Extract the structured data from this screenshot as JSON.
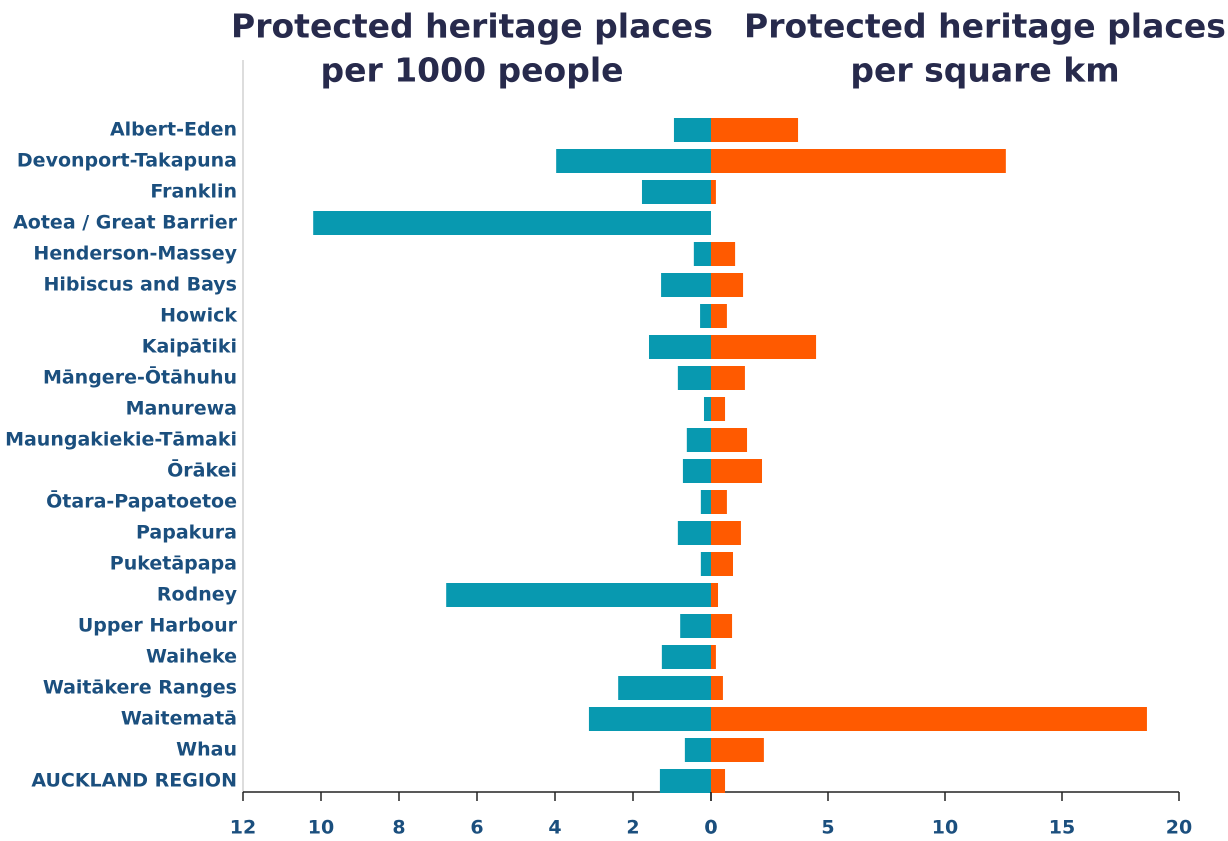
{
  "chart_data": [
    {
      "type": "barh",
      "title": [
        "Protected heritage places",
        "per 1000 people"
      ],
      "categories": [
        "Albert-Eden",
        "Devonport-Takapuna",
        "Franklin",
        "Aotea / Great Barrier",
        "Henderson-Massey",
        "Hibiscus and Bays",
        "Howick",
        "Kaipātiki",
        "Māngere-Ōtāhuhu",
        "Manurewa",
        "Maungakiekie-Tāmaki",
        "Ōrākei",
        "Ōtara-Papatoetoe",
        "Papakura",
        "Puketāpapa",
        "Rodney",
        "Upper Harbour",
        "Waiheke",
        "Waitākere Ranges",
        "Waitematā",
        "Whau",
        "AUCKLAND REGION"
      ],
      "values": [
        0.95,
        3.97,
        1.77,
        10.2,
        0.44,
        1.28,
        0.28,
        1.59,
        0.85,
        0.18,
        0.62,
        0.72,
        0.26,
        0.85,
        0.26,
        6.79,
        0.79,
        1.26,
        2.38,
        3.13,
        0.67,
        1.31
      ],
      "color": "#0899b0",
      "xlim": [
        12,
        0
      ],
      "xticks": [
        12,
        10,
        8,
        6,
        4,
        2,
        0
      ]
    },
    {
      "type": "barh",
      "title": [
        "Protected heritage places",
        "per square km"
      ],
      "values": [
        3.72,
        12.6,
        0.21,
        0,
        1.03,
        1.37,
        0.68,
        4.49,
        1.45,
        0.6,
        1.54,
        2.18,
        0.68,
        1.28,
        0.94,
        0.3,
        0.9,
        0.21,
        0.51,
        18.63,
        2.26,
        0.6
      ],
      "color": "#ff5a00",
      "xlim": [
        0,
        20
      ],
      "xticks": [
        0,
        5,
        10,
        15,
        20
      ]
    }
  ]
}
